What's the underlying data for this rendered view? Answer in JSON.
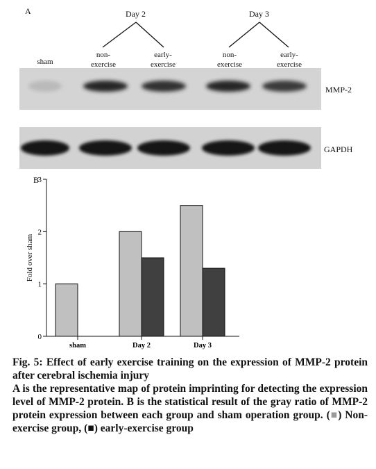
{
  "panel_a": {
    "label": "A",
    "groups": [
      {
        "label": "Day 2"
      },
      {
        "label": "Day 3"
      }
    ],
    "lanes": [
      {
        "line1": "sham",
        "line2": ""
      },
      {
        "line1": "non-",
        "line2": "exercise"
      },
      {
        "line1": "early-",
        "line2": "exercise"
      },
      {
        "line1": "non-",
        "line2": "exercise"
      },
      {
        "line1": "early-",
        "line2": "exercise"
      }
    ],
    "bands": [
      {
        "name": "MMP-2",
        "intensity": [
          0.15,
          0.9,
          0.85,
          0.9,
          0.8
        ]
      },
      {
        "name": "GAPDH",
        "intensity": [
          1.0,
          1.0,
          1.0,
          1.0,
          1.0
        ]
      }
    ]
  },
  "chart_data": {
    "type": "bar",
    "panel_label": "B",
    "categories": [
      "sham",
      "Day 2",
      "Day 3"
    ],
    "series": [
      {
        "values": [
          1,
          2,
          2.5
        ],
        "color": "#c0c0c0"
      },
      {
        "values": [
          null,
          1.5,
          1.3
        ],
        "color": "#404040"
      }
    ],
    "ylabel": "Fold over sham",
    "ylim": [
      0,
      3
    ],
    "yticks": [
      "0",
      "1",
      "2",
      "3"
    ],
    "grid": false
  },
  "caption": {
    "title": "Fig. 5: Effect of early exercise training on the expression of MMP-2 protein after cerebral ischemia injury",
    "body_part1": "A is the representative map of protein imprinting for detecting the expression level of MMP-2 protein. B is the statistical result of the gray ratio of MMP-2 protein expression between each group and sham operation group. (",
    "marker1": "■",
    "body_part2": ") Non-exercise group, (",
    "marker2": "■",
    "body_part3": ") early-exercise group",
    "marker1_color": "#9a9a9a",
    "marker2_color": "#111111"
  }
}
